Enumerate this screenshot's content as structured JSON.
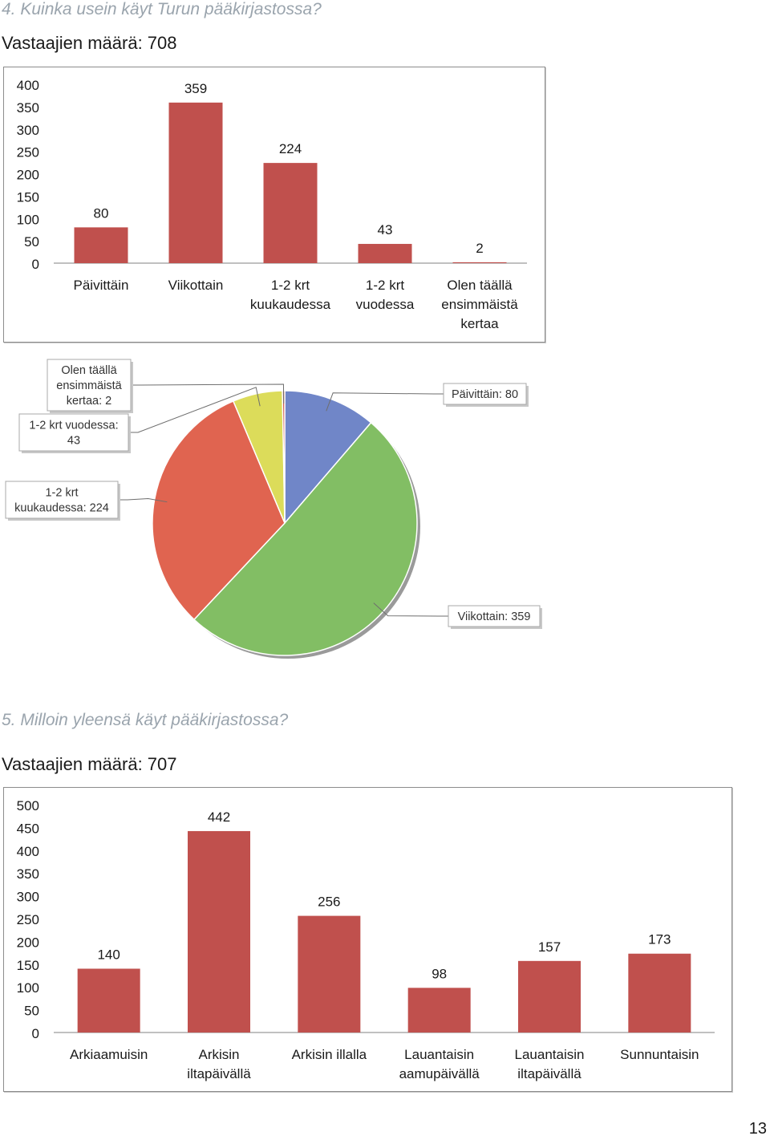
{
  "questions": [
    {
      "title": "4. Kuinka usein käyt Turun pääkirjastossa?",
      "respondents": "Vastaajien määrä: 708"
    },
    {
      "title": "5. Milloin yleensä käyt pääkirjastossa?",
      "respondents": "Vastaajien määrä: 707"
    }
  ],
  "page_number": "13",
  "colors": {
    "bar": "#c0504d"
  },
  "chart_data": [
    {
      "type": "bar",
      "categories": [
        [
          "Päivittäin"
        ],
        [
          "Viikottain"
        ],
        [
          "1-2 krt",
          "kuukaudessa"
        ],
        [
          "1-2 krt",
          "vuodessa"
        ],
        [
          "Olen täällä",
          "ensimmäistä",
          "kertaa"
        ]
      ],
      "values": [
        80,
        359,
        224,
        43,
        2
      ],
      "data_labels": [
        "80",
        "359",
        "224",
        "43",
        "2"
      ],
      "yticks": [
        "400",
        "350",
        "300",
        "250",
        "200",
        "150",
        "100",
        "50",
        "0"
      ],
      "ylim": [
        0,
        400
      ],
      "title": "",
      "xlabel": "",
      "ylabel": "",
      "grid": false,
      "legend": "none"
    },
    {
      "type": "pie",
      "slices": [
        {
          "label": "Päivittäin: 80",
          "value": 80,
          "color": "#7086c8"
        },
        {
          "label": "Viikottain: 359",
          "value": 359,
          "color": "#82be64"
        },
        {
          "label": "1-2 krt kuukaudessa: 224",
          "value": 224,
          "color": "#e06450"
        },
        {
          "label": "1-2 krt vuodessa: 43",
          "value": 43,
          "color": "#dcdc5a"
        },
        {
          "label": "Olen täällä ensimmäistä kertaa: 2",
          "value": 2,
          "color": "#c84638"
        }
      ],
      "label_lines": [
        [
          "Päivittäin: 80"
        ],
        [
          "Viikottain: 359"
        ],
        [
          "1-2 krt",
          "kuukaudessa: 224"
        ],
        [
          "1-2 krt vuodessa:",
          "43"
        ],
        [
          "Olen täällä",
          "ensimmäistä",
          "kertaa: 2"
        ]
      ]
    },
    {
      "type": "bar",
      "categories": [
        [
          "Arkiaamuisin"
        ],
        [
          "Arkisin",
          "iltapäivällä"
        ],
        [
          "Arkisin illalla"
        ],
        [
          "Lauantaisin",
          "aamupäivällä"
        ],
        [
          "Lauantaisin",
          "iltapäivällä"
        ],
        [
          "Sunnuntaisin"
        ]
      ],
      "values": [
        140,
        442,
        256,
        98,
        157,
        173
      ],
      "data_labels": [
        "140",
        "442",
        "256",
        "98",
        "157",
        "173"
      ],
      "yticks": [
        "500",
        "450",
        "400",
        "350",
        "300",
        "250",
        "200",
        "150",
        "100",
        "50",
        "0"
      ],
      "ylim": [
        0,
        500
      ],
      "title": "",
      "xlabel": "",
      "ylabel": "",
      "grid": false,
      "legend": "none"
    }
  ]
}
